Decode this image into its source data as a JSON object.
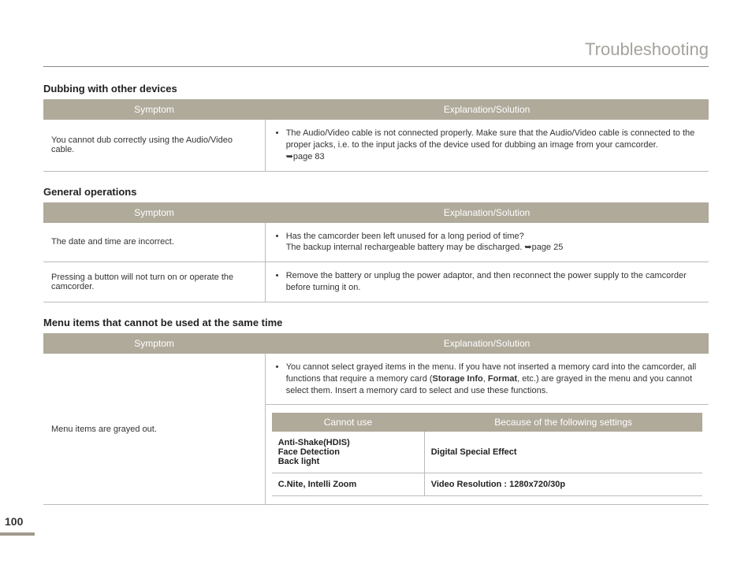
{
  "page_title": "Troubleshooting",
  "page_number": "100",
  "colors": {
    "header_bg": "#b0aa9b",
    "header_text": "#ffffff",
    "title_color": "#a6a29d",
    "border": "#bbbbbb",
    "text": "#333333"
  },
  "section1": {
    "heading": "Dubbing with other devices",
    "col_symptom": "Symptom",
    "col_explanation": "Explanation/Solution",
    "row1_symptom": "You cannot dub correctly using the Audio/Video cable.",
    "row1_expl_line1": "The Audio/Video cable is not connected properly. Make sure that the Audio/Video cable is connected to the proper jacks, i.e. to the input jacks of the device used for dubbing an image from your camcorder.",
    "row1_expl_line2": "➥page 83"
  },
  "section2": {
    "heading": "General operations",
    "col_symptom": "Symptom",
    "col_explanation": "Explanation/Solution",
    "row1_symptom": "The date and time are incorrect.",
    "row1_expl_line1": "Has the camcorder been left unused for a long period of time?",
    "row1_expl_line2": "The backup internal rechargeable battery may be discharged. ➥page 25",
    "row2_symptom": "Pressing a button will not turn on or operate the camcorder.",
    "row2_expl": "Remove the battery or unplug the power adaptor, and then reconnect the power supply to the camcorder before turning it on."
  },
  "section3": {
    "heading": "Menu items that cannot be used at the same time",
    "col_symptom": "Symptom",
    "col_explanation": "Explanation/Solution",
    "symptom": "Menu items are grayed out.",
    "bullet_pre": "You cannot select grayed items in the menu. If you have not inserted a memory card into the camcorder, all functions that require a memory card (",
    "bold1": "Storage Info",
    "mid1": ", ",
    "bold2": "Format",
    "bullet_post": ", etc.) are grayed in the menu and you cannot select them. Insert a memory card to select and use these functions.",
    "inner_col1": "Cannot use",
    "inner_col2": "Because of the following settings",
    "inner_r1_c1_l1": "Anti-Shake(HDIS)",
    "inner_r1_c1_l2": "Face Detection",
    "inner_r1_c1_l3": "Back light",
    "inner_r1_c2": "Digital Special Effect",
    "inner_r2_c1": "C.Nite, Intelli Zoom",
    "inner_r2_c2": "Video Resolution : 1280x720/30p"
  }
}
